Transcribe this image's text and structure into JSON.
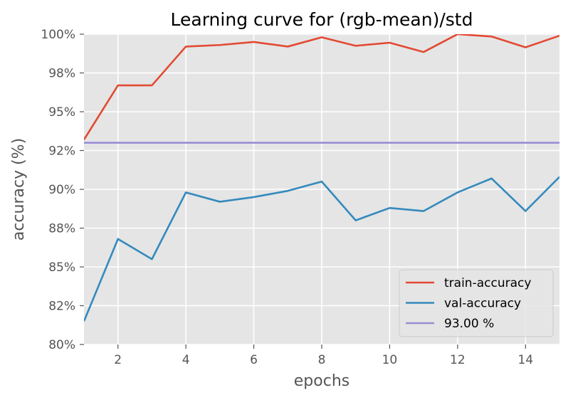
{
  "chart_data": {
    "type": "line",
    "title": "Learning curve for (rgb-mean)/std",
    "xlabel": "epochs",
    "ylabel": "accuracy (%)",
    "xlim": [
      1,
      15
    ],
    "ylim": [
      80,
      100
    ],
    "x": [
      1,
      2,
      3,
      4,
      5,
      6,
      7,
      8,
      9,
      10,
      11,
      12,
      13,
      14,
      15
    ],
    "x_ticks": [
      2,
      4,
      6,
      8,
      10,
      12,
      14
    ],
    "x_tick_labels": [
      "2",
      "4",
      "6",
      "8",
      "10",
      "12",
      "14"
    ],
    "y_ticks": [
      80,
      82.5,
      85,
      87.5,
      90,
      92.5,
      95,
      97.5,
      100
    ],
    "y_tick_labels": [
      "80%",
      "82%",
      "85%",
      "88%",
      "90%",
      "92%",
      "95%",
      "98%",
      "100%"
    ],
    "grid": true,
    "legend_position": "lower-right",
    "series": [
      {
        "name": "train-accuracy",
        "color": "#E24A33",
        "values": [
          93.2,
          96.7,
          96.7,
          99.2,
          99.3,
          99.5,
          99.2,
          99.8,
          99.25,
          99.45,
          98.85,
          100.0,
          99.85,
          99.15,
          99.9
        ]
      },
      {
        "name": "val-accuracy",
        "color": "#348ABD",
        "values": [
          81.5,
          86.8,
          85.5,
          89.8,
          89.2,
          89.5,
          89.9,
          90.5,
          88.0,
          88.8,
          88.6,
          89.8,
          90.7,
          88.6,
          90.8
        ]
      },
      {
        "name": "93.00 %",
        "color": "#988ED5",
        "values": [
          93.0,
          93.0,
          93.0,
          93.0,
          93.0,
          93.0,
          93.0,
          93.0,
          93.0,
          93.0,
          93.0,
          93.0,
          93.0,
          93.0,
          93.0
        ]
      }
    ]
  }
}
